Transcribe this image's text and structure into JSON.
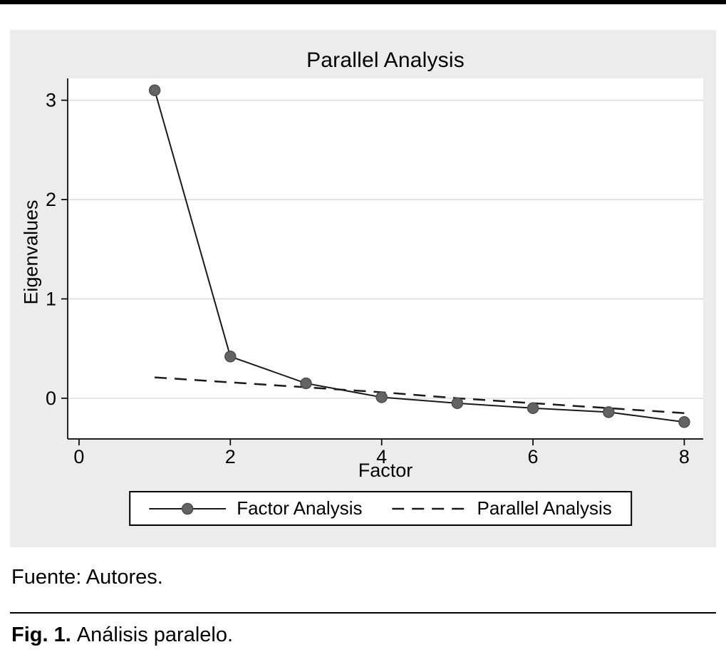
{
  "figure": {
    "title": "Parallel Analysis",
    "xlabel": "Factor",
    "ylabel": "Eigenvalues",
    "source_note": "Fuente: Autores.",
    "caption_label": "Fig. 1.",
    "caption_text": "Análisis paralelo."
  },
  "legend": {
    "series1": "Factor Analysis",
    "series2": "Parallel Analysis"
  },
  "chart_data": {
    "type": "line",
    "title": "Parallel Analysis",
    "xlabel": "Factor",
    "ylabel": "Eigenvalues",
    "x": [
      1,
      2,
      3,
      4,
      5,
      6,
      7,
      8
    ],
    "series": [
      {
        "name": "Factor Analysis",
        "style": "solid-with-markers",
        "values": [
          3.1,
          0.42,
          0.15,
          0.01,
          -0.05,
          -0.1,
          -0.14,
          -0.24
        ]
      },
      {
        "name": "Parallel Analysis",
        "style": "dashed",
        "values": [
          0.21,
          0.16,
          0.11,
          0.06,
          0.0,
          -0.05,
          -0.1,
          -0.15
        ]
      }
    ],
    "x_ticks": [
      0,
      2,
      4,
      6,
      8
    ],
    "y_ticks": [
      0,
      1,
      2,
      3
    ],
    "xlim": [
      -0.15,
      8.25
    ],
    "ylim": [
      -0.41,
      3.22
    ],
    "grid": "horizontal",
    "legend_position": "bottom",
    "colors": {
      "line": "#1a1a1a",
      "marker_fill": "#636363",
      "marker_edge": "#4d4d4d",
      "dashed_line": "#1a1a1a",
      "panel_bg": "#ececec",
      "plot_bg": "#ffffff",
      "gridline": "#e0e0e0",
      "axis": "#000000"
    }
  }
}
